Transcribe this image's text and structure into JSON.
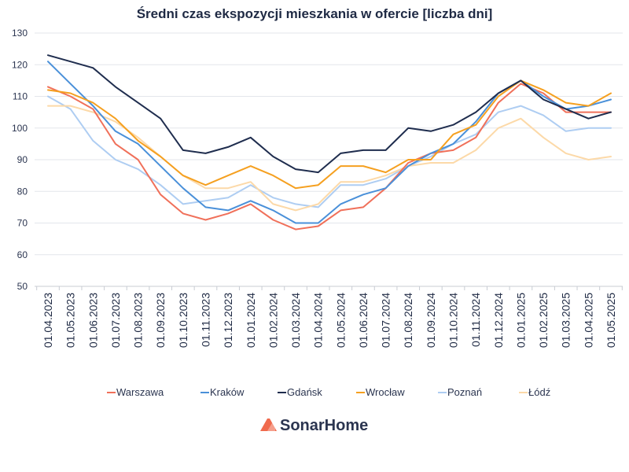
{
  "chart_data": {
    "type": "line",
    "title": "Średni czas ekspozycji mieszkania w ofercie [liczba dni]",
    "xlabel": "",
    "ylabel": "",
    "ylim": [
      50,
      130
    ],
    "yticks": [
      50,
      60,
      70,
      80,
      90,
      100,
      110,
      120,
      130
    ],
    "grid": true,
    "legend_position": "bottom",
    "categories": [
      "01.04.2023",
      "01.05.2023",
      "01.06.2023",
      "01.07.2023",
      "01.08.2023",
      "01.09.2023",
      "01.10.2023",
      "01.11.2023",
      "01.12.2023",
      "01.01.2024",
      "01.02.2024",
      "01.03.2024",
      "01.04.2024",
      "01.05.2024",
      "01.06.2024",
      "01.07.2024",
      "01.08.2024",
      "01.09.2024",
      "01.10.2024",
      "01.11.2024",
      "01.12.2024",
      "01.01.2025",
      "01.02.2025",
      "01.03.2025",
      "01.04.2025",
      "01.05.2025"
    ],
    "label_categories": [
      "01.04.2023",
      "01.05.2023",
      "01.06.2023",
      "01.07.2023",
      "01.08.2023",
      "01.09.2023",
      "01.10.2023",
      "01.11.2023",
      "01.12.2023",
      "01.01.2024",
      "01.02.2024",
      "01.03.2024",
      "01.04.2024",
      "01.05.2024",
      "01.06.2024",
      "01.07.2024",
      "01.08.2024",
      "01.09.2024",
      "01.10.2024",
      "01.11.2024",
      "01.12.2024",
      "01.01.2025",
      "01.02.2025",
      "01.03.2025",
      "01.04.2025",
      "01.05.2025"
    ],
    "series": [
      {
        "name": "Warszawa",
        "color": "#f0705a",
        "values": [
          113,
          110,
          106,
          95,
          90,
          79,
          73,
          71,
          73,
          76,
          71,
          68,
          69,
          74,
          75,
          81,
          89,
          92,
          93,
          97,
          108,
          114,
          111,
          105,
          105,
          105
        ]
      },
      {
        "name": "Kraków",
        "color": "#4a90d9",
        "values": [
          121,
          114,
          107,
          99,
          95,
          88,
          81,
          75,
          74,
          77,
          74,
          70,
          70,
          76,
          79,
          81,
          88,
          92,
          95,
          102,
          111,
          115,
          110,
          106,
          107,
          109
        ]
      },
      {
        "name": "Gdańsk",
        "color": "#1f2d4e",
        "values": [
          123,
          121,
          119,
          113,
          108,
          103,
          93,
          92,
          94,
          97,
          91,
          87,
          86,
          92,
          93,
          93,
          100,
          99,
          101,
          105,
          111,
          115,
          109,
          106,
          103,
          105
        ]
      },
      {
        "name": "Wrocław",
        "color": "#f5a020",
        "values": [
          112,
          111,
          108,
          103,
          96,
          91,
          85,
          82,
          85,
          88,
          85,
          81,
          82,
          88,
          88,
          86,
          90,
          90,
          98,
          101,
          110,
          115,
          112,
          108,
          107,
          111
        ]
      },
      {
        "name": "Poznań",
        "color": "#aecdf2",
        "values": [
          110,
          106,
          96,
          90,
          87,
          82,
          76,
          77,
          78,
          82,
          78,
          76,
          75,
          82,
          82,
          84,
          88,
          91,
          95,
          98,
          105,
          107,
          104,
          99,
          100,
          100
        ]
      },
      {
        "name": "Łódź",
        "color": "#fcd9a8",
        "values": [
          107,
          107,
          105,
          102,
          97,
          91,
          85,
          81,
          81,
          83,
          76,
          74,
          76,
          83,
          83,
          85,
          88,
          89,
          89,
          93,
          100,
          103,
          97,
          92,
          90,
          91
        ]
      }
    ]
  },
  "brand": {
    "name": "SonarHome",
    "accent": "#f06a4d"
  }
}
